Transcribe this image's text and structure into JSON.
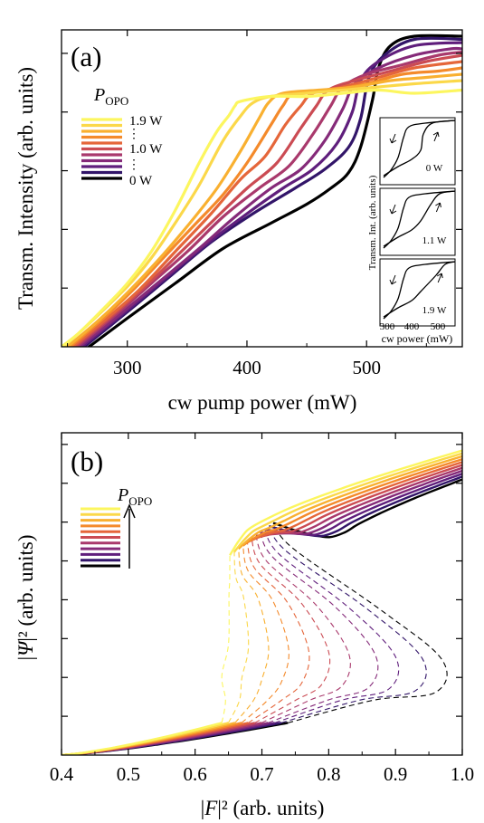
{
  "chart_data": [
    {
      "panel": "(a)",
      "type": "line",
      "xlabel": "cw pump power (mW)",
      "ylabel": "Transm. Intensity (arb. units)",
      "xlim": [
        245,
        580
      ],
      "ylim": [
        0,
        1
      ],
      "xticks": [
        300,
        400,
        500
      ],
      "legend_title": "P",
      "legend_title_sub": "OPO",
      "legend_labels": [
        "1.9 W",
        "1.0 W",
        "0 W"
      ],
      "legend_dots": "⋮",
      "colors": [
        "#fcf65f",
        "#fbd849",
        "#f9b030",
        "#f48a2b",
        "#e5663a",
        "#cb4b53",
        "#a9396c",
        "#852a79",
        "#5f1e7c",
        "#321569",
        "#000000"
      ],
      "series": [
        {
          "name": "1.9 W",
          "x": [
            245,
            260,
            280,
            300,
            320,
            340,
            360,
            375,
            385,
            390,
            395,
            420,
            450,
            480,
            510,
            540,
            580
          ],
          "y": [
            0.0,
            0.045,
            0.12,
            0.2,
            0.3,
            0.43,
            0.58,
            0.68,
            0.73,
            0.76,
            0.775,
            0.79,
            0.79,
            0.8,
            0.81,
            0.8,
            0.81
          ]
        },
        {
          "name": "",
          "x": [
            247,
            270,
            300,
            320,
            340,
            360,
            380,
            395,
            405,
            420,
            450,
            480,
            510,
            540,
            580
          ],
          "y": [
            0.0,
            0.08,
            0.19,
            0.28,
            0.39,
            0.51,
            0.65,
            0.73,
            0.77,
            0.79,
            0.8,
            0.81,
            0.82,
            0.83,
            0.84
          ]
        },
        {
          "name": "",
          "x": [
            250,
            275,
            300,
            325,
            350,
            375,
            395,
            410,
            418,
            430,
            460,
            490,
            520,
            550,
            580
          ],
          "y": [
            0.0,
            0.08,
            0.17,
            0.27,
            0.38,
            0.5,
            0.62,
            0.72,
            0.77,
            0.8,
            0.81,
            0.82,
            0.84,
            0.85,
            0.86
          ]
        },
        {
          "name": "",
          "x": [
            252,
            280,
            305,
            330,
            355,
            380,
            400,
            420,
            430,
            440,
            470,
            500,
            530,
            560,
            580
          ],
          "y": [
            0.0,
            0.09,
            0.18,
            0.28,
            0.38,
            0.48,
            0.58,
            0.7,
            0.76,
            0.8,
            0.81,
            0.83,
            0.86,
            0.87,
            0.88
          ]
        },
        {
          "name": "1.0 W",
          "x": [
            254,
            280,
            310,
            340,
            370,
            395,
            415,
            432,
            445,
            455,
            480,
            510,
            540,
            580
          ],
          "y": [
            0.0,
            0.08,
            0.18,
            0.3,
            0.42,
            0.53,
            0.6,
            0.7,
            0.76,
            0.8,
            0.82,
            0.85,
            0.88,
            0.9
          ]
        },
        {
          "name": "",
          "x": [
            256,
            285,
            315,
            345,
            375,
            400,
            425,
            445,
            458,
            468,
            490,
            520,
            550,
            580
          ],
          "y": [
            0.0,
            0.09,
            0.19,
            0.3,
            0.41,
            0.5,
            0.58,
            0.69,
            0.76,
            0.81,
            0.84,
            0.87,
            0.9,
            0.92
          ]
        },
        {
          "name": "",
          "x": [
            258,
            290,
            320,
            350,
            380,
            410,
            435,
            455,
            470,
            480,
            500,
            530,
            560,
            580
          ],
          "y": [
            0.0,
            0.1,
            0.2,
            0.3,
            0.41,
            0.5,
            0.57,
            0.67,
            0.76,
            0.82,
            0.86,
            0.89,
            0.92,
            0.93
          ]
        },
        {
          "name": "",
          "x": [
            260,
            290,
            325,
            360,
            390,
            420,
            445,
            465,
            480,
            490,
            510,
            540,
            570,
            580
          ],
          "y": [
            0.0,
            0.09,
            0.2,
            0.31,
            0.41,
            0.5,
            0.56,
            0.65,
            0.75,
            0.83,
            0.88,
            0.92,
            0.94,
            0.94
          ]
        },
        {
          "name": "",
          "x": [
            262,
            295,
            330,
            365,
            400,
            430,
            455,
            475,
            488,
            495,
            510,
            540,
            580
          ],
          "y": [
            0.0,
            0.1,
            0.21,
            0.32,
            0.42,
            0.5,
            0.56,
            0.64,
            0.74,
            0.84,
            0.9,
            0.95,
            0.96
          ]
        },
        {
          "name": "",
          "x": [
            264,
            300,
            335,
            370,
            405,
            440,
            465,
            485,
            495,
            502,
            515,
            540,
            580
          ],
          "y": [
            0.0,
            0.11,
            0.22,
            0.33,
            0.42,
            0.5,
            0.56,
            0.63,
            0.72,
            0.85,
            0.92,
            0.97,
            0.97
          ]
        },
        {
          "name": "0 W",
          "x": [
            268,
            300,
            340,
            380,
            420,
            450,
            470,
            485,
            495,
            505,
            510,
            520,
            540,
            580
          ],
          "y": [
            0.0,
            0.09,
            0.2,
            0.31,
            0.39,
            0.45,
            0.5,
            0.55,
            0.63,
            0.78,
            0.88,
            0.95,
            0.98,
            0.98
          ]
        }
      ],
      "insets": [
        {
          "label": "0 W"
        },
        {
          "label": "1.1 W"
        },
        {
          "label": "1.9 W"
        }
      ],
      "inset_ylabel": "Transm. Int. (arb. units)",
      "inset_xlabel": "cw power (mW)",
      "inset_xticks": [
        300,
        400,
        500
      ]
    },
    {
      "panel": "(b)",
      "type": "line",
      "xlabel_pre": "|",
      "xlabel_var": "F",
      "xlabel_post": "|² (arb. units)",
      "ylabel_pre": "|",
      "ylabel_var": "Ψ",
      "ylabel_post": "|² (arb. units)",
      "xlim": [
        0.4,
        1.0
      ],
      "ylim": [
        0,
        1
      ],
      "xticks": [
        0.4,
        0.5,
        0.6,
        0.7,
        0.8,
        0.9,
        1.0
      ],
      "xticklabels": [
        "0.4",
        "0.5",
        "0.6",
        "0.7",
        "0.8",
        "0.9",
        "1.0"
      ],
      "legend_title": "P",
      "legend_title_sub": "OPO",
      "note": "S-shaped bistability curves; stable branches solid, unstable middle branch dashed",
      "series": [
        {
          "turn_lower_x": 0.655,
          "turn_upper_x": 0.65,
          "turn_lower_y": 0.64,
          "turn_upper_y": 0.325
        },
        {
          "turn_lower_x": 0.667,
          "turn_upper_x": 0.68,
          "turn_lower_y": 0.65,
          "turn_upper_y": 0.32
        },
        {
          "turn_lower_x": 0.679,
          "turn_upper_x": 0.71,
          "turn_lower_y": 0.66,
          "turn_upper_y": 0.315
        },
        {
          "turn_lower_x": 0.691,
          "turn_upper_x": 0.74,
          "turn_lower_y": 0.67,
          "turn_upper_y": 0.31
        },
        {
          "turn_lower_x": 0.703,
          "turn_upper_x": 0.77,
          "turn_lower_y": 0.68,
          "turn_upper_y": 0.305
        },
        {
          "turn_lower_x": 0.715,
          "turn_upper_x": 0.8,
          "turn_lower_y": 0.69,
          "turn_upper_y": 0.3
        },
        {
          "turn_lower_x": 0.727,
          "turn_upper_x": 0.83,
          "turn_lower_y": 0.7,
          "turn_upper_y": 0.295
        },
        {
          "turn_lower_x": 0.739,
          "turn_upper_x": 0.87,
          "turn_lower_y": 0.71,
          "turn_upper_y": 0.29
        },
        {
          "turn_lower_x": 0.751,
          "turn_upper_x": 0.9,
          "turn_lower_y": 0.72,
          "turn_upper_y": 0.285
        },
        {
          "turn_lower_x": 0.763,
          "turn_upper_x": 0.94,
          "turn_lower_y": 0.73,
          "turn_upper_y": 0.28
        },
        {
          "turn_lower_x": 0.775,
          "turn_upper_x": 0.97,
          "turn_lower_y": 0.74,
          "turn_upper_y": 0.275
        }
      ]
    }
  ]
}
